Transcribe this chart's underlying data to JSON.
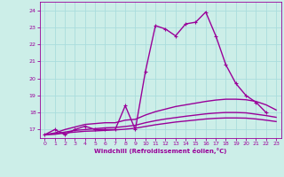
{
  "xlabel": "Windchill (Refroidissement éolien,°C)",
  "background_color": "#cceee8",
  "grid_color": "#aadddd",
  "line_color": "#990099",
  "xlim": [
    -0.5,
    23.5
  ],
  "ylim": [
    16.5,
    24.5
  ],
  "yticks": [
    17,
    18,
    19,
    20,
    21,
    22,
    23,
    24
  ],
  "xticks": [
    0,
    1,
    2,
    3,
    4,
    5,
    6,
    7,
    8,
    9,
    10,
    11,
    12,
    13,
    14,
    15,
    16,
    17,
    18,
    19,
    20,
    21,
    22,
    23
  ],
  "lines": [
    {
      "x": [
        0,
        1,
        2,
        3,
        4,
        5,
        6,
        7,
        8,
        9,
        10,
        11,
        12,
        13,
        14,
        15,
        16,
        17,
        18,
        19,
        20,
        21,
        22
      ],
      "y": [
        16.7,
        17.0,
        16.7,
        17.0,
        17.2,
        17.0,
        17.0,
        17.0,
        18.4,
        17.0,
        20.4,
        23.1,
        22.9,
        22.5,
        23.2,
        23.3,
        23.9,
        22.5,
        20.8,
        19.7,
        19.0,
        18.6,
        18.0
      ],
      "marker": true,
      "linewidth": 1.0
    },
    {
      "x": [
        0,
        1,
        2,
        3,
        4,
        5,
        6,
        7,
        8,
        9,
        10,
        11,
        12,
        13,
        14,
        15,
        16,
        17,
        18,
        19,
        20,
        21,
        22,
        23
      ],
      "y": [
        16.7,
        16.8,
        17.0,
        17.15,
        17.3,
        17.35,
        17.4,
        17.4,
        17.55,
        17.6,
        17.85,
        18.05,
        18.2,
        18.35,
        18.45,
        18.55,
        18.65,
        18.73,
        18.78,
        18.78,
        18.75,
        18.65,
        18.45,
        18.15
      ],
      "marker": false,
      "linewidth": 1.0
    },
    {
      "x": [
        0,
        1,
        2,
        3,
        4,
        5,
        6,
        7,
        8,
        9,
        10,
        11,
        12,
        13,
        14,
        15,
        16,
        17,
        18,
        19,
        20,
        21,
        22,
        23
      ],
      "y": [
        16.7,
        16.75,
        16.85,
        16.95,
        17.0,
        17.05,
        17.1,
        17.12,
        17.18,
        17.25,
        17.4,
        17.52,
        17.62,
        17.7,
        17.78,
        17.85,
        17.92,
        17.97,
        18.0,
        18.0,
        17.98,
        17.9,
        17.82,
        17.72
      ],
      "marker": false,
      "linewidth": 1.0
    },
    {
      "x": [
        0,
        1,
        2,
        3,
        4,
        5,
        6,
        7,
        8,
        9,
        10,
        11,
        12,
        13,
        14,
        15,
        16,
        17,
        18,
        19,
        20,
        21,
        22,
        23
      ],
      "y": [
        16.7,
        16.72,
        16.8,
        16.85,
        16.9,
        16.92,
        16.95,
        16.98,
        17.02,
        17.08,
        17.18,
        17.28,
        17.36,
        17.44,
        17.5,
        17.56,
        17.62,
        17.66,
        17.68,
        17.68,
        17.67,
        17.62,
        17.55,
        17.47
      ],
      "marker": false,
      "linewidth": 1.0
    }
  ]
}
